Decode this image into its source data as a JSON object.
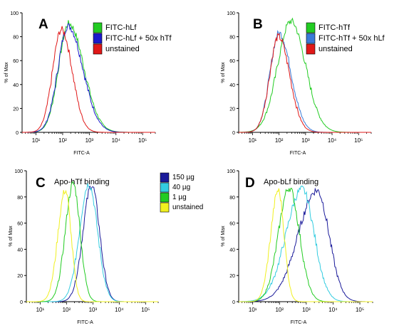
{
  "chart_data": [
    {
      "type": "line",
      "panel_letter": "A",
      "title": "",
      "xlabel": "FITC-A",
      "ylabel": "% of Max",
      "x_scale": "log",
      "xlim": [
        3,
        300000
      ],
      "ylim": [
        0,
        100
      ],
      "x_ticks": [
        10,
        100,
        1000,
        10000,
        100000
      ],
      "x_tick_labels": [
        "10¹",
        "10²",
        "10³",
        "10⁴",
        "10⁵"
      ],
      "y_ticks": [
        0,
        20,
        40,
        60,
        80,
        100
      ],
      "legend_position": "top-right",
      "series": [
        {
          "name": "FITC-hLf",
          "color": "#22cc22",
          "peak_x": 170,
          "peak_y": 91,
          "width_left": 0.38,
          "width_right": 0.56
        },
        {
          "name": "FITC-hLf  + 50x hTf",
          "color": "#1a1acc",
          "peak_x": 160,
          "peak_y": 89,
          "width_left": 0.38,
          "width_right": 0.55
        },
        {
          "name": "unstained",
          "color": "#e01818",
          "peak_x": 90,
          "peak_y": 86,
          "width_left": 0.33,
          "width_right": 0.4
        }
      ]
    },
    {
      "type": "line",
      "panel_letter": "B",
      "title": "",
      "xlabel": "FITC-A",
      "ylabel": "% of Max",
      "x_scale": "log",
      "xlim": [
        3,
        300000
      ],
      "ylim": [
        0,
        100
      ],
      "x_ticks": [
        10,
        100,
        1000,
        10000,
        100000
      ],
      "x_tick_labels": [
        "10¹",
        "10²",
        "10³",
        "10⁴",
        "10⁵"
      ],
      "y_ticks": [
        0,
        20,
        40,
        60,
        80,
        100
      ],
      "legend_position": "top-right",
      "series": [
        {
          "name": "FITC-hTf",
          "color": "#22cc22",
          "peak_x": 280,
          "peak_y": 93,
          "width_left": 0.5,
          "width_right": 0.55
        },
        {
          "name": "FITC-hTf  + 50x hLf",
          "color": "#3a7ad8",
          "peak_x": 100,
          "peak_y": 83,
          "width_left": 0.34,
          "width_right": 0.45
        },
        {
          "name": "unstained",
          "color": "#e01818",
          "peak_x": 95,
          "peak_y": 80,
          "width_left": 0.33,
          "width_right": 0.42
        }
      ]
    },
    {
      "type": "line",
      "panel_letter": "C",
      "title": "Apo-hTf binding",
      "xlabel": "FITC-A",
      "ylabel": "% of Max",
      "x_scale": "log",
      "xlim": [
        3,
        300000
      ],
      "ylim": [
        0,
        100
      ],
      "x_ticks": [
        10,
        100,
        1000,
        10000,
        100000
      ],
      "x_tick_labels": [
        "10¹",
        "10²",
        "10³",
        "10⁴",
        "10⁵"
      ],
      "y_ticks": [
        0,
        20,
        40,
        60,
        80,
        100
      ],
      "legend_position": "top-right",
      "series": [
        {
          "name": "150 µg",
          "color": "#1a1a9a",
          "peak_x": 900,
          "peak_y": 89,
          "width_left": 0.33,
          "width_right": 0.3
        },
        {
          "name": "40 µg",
          "color": "#33cce0",
          "peak_x": 700,
          "peak_y": 90,
          "width_left": 0.35,
          "width_right": 0.33
        },
        {
          "name": "1 µg",
          "color": "#22cc22",
          "peak_x": 180,
          "peak_y": 90,
          "width_left": 0.3,
          "width_right": 0.26
        },
        {
          "name": "unstained",
          "color": "#f0f020",
          "peak_x": 90,
          "peak_y": 85,
          "width_left": 0.28,
          "width_right": 0.22
        }
      ]
    },
    {
      "type": "line",
      "panel_letter": "D",
      "title": "Apo-bLf binding",
      "xlabel": "FITC-A",
      "ylabel": "% of Max",
      "x_scale": "log",
      "xlim": [
        3,
        300000
      ],
      "ylim": [
        0,
        100
      ],
      "x_ticks": [
        10,
        100,
        1000,
        10000,
        100000
      ],
      "x_tick_labels": [
        "10¹",
        "10²",
        "10³",
        "10⁴",
        "10⁵"
      ],
      "y_ticks": [
        0,
        20,
        40,
        60,
        80,
        100
      ],
      "legend_position": "none",
      "series": [
        {
          "name": "",
          "color": "#1a1a9a",
          "peak_x": 2500,
          "peak_y": 85,
          "width_left": 0.7,
          "width_right": 0.45
        },
        {
          "name": "",
          "color": "#33cce0",
          "peak_x": 700,
          "peak_y": 86,
          "width_left": 0.6,
          "width_right": 0.45
        },
        {
          "name": "",
          "color": "#22cc22",
          "peak_x": 230,
          "peak_y": 87,
          "width_left": 0.4,
          "width_right": 0.38
        },
        {
          "name": "",
          "color": "#f0f020",
          "peak_x": 90,
          "peak_y": 85,
          "width_left": 0.28,
          "width_right": 0.22
        }
      ]
    }
  ]
}
